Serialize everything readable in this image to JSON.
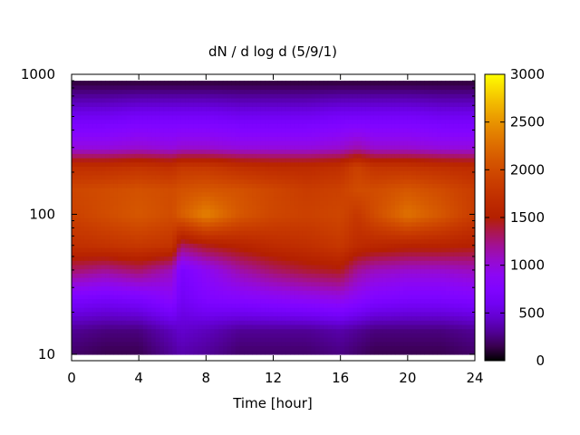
{
  "chart_data": {
    "type": "heatmap",
    "title": "dN / d log d (5/9/1)",
    "xlabel": "Time [hour]",
    "ylabel": "",
    "xlim": [
      0,
      24
    ],
    "ylim": [
      9,
      1000
    ],
    "y_scale": "log",
    "x_ticks": [
      "0",
      "4",
      "8",
      "12",
      "16",
      "20",
      "24"
    ],
    "y_ticks": [
      "10",
      "100",
      "1000"
    ],
    "colorbar": {
      "range": [
        0,
        3000
      ],
      "ticks": [
        "0",
        "500",
        "1000",
        "1500",
        "2000",
        "2500",
        "3000"
      ],
      "colormap": "gnuplot",
      "colors": [
        "#000000",
        "#7a00ff",
        "#cc2060",
        "#ff8800",
        "#ffff00"
      ]
    },
    "grid": false,
    "time_hours": [
      0,
      2,
      4,
      6,
      6.5,
      8,
      10,
      12,
      14,
      16,
      17,
      18,
      20,
      22,
      24
    ],
    "diameter_levels": [
      10,
      15,
      25,
      40,
      60,
      100,
      150,
      220,
      300,
      500,
      900
    ],
    "values": [
      [
        200,
        150,
        150,
        300,
        350,
        300,
        200,
        200,
        200,
        250,
        200,
        150,
        150,
        150,
        200
      ],
      [
        300,
        250,
        250,
        400,
        450,
        400,
        300,
        300,
        300,
        350,
        300,
        250,
        250,
        250,
        300
      ],
      [
        700,
        650,
        700,
        850,
        600,
        750,
        800,
        850,
        900,
        950,
        850,
        750,
        700,
        700,
        750
      ],
      [
        1300,
        1200,
        1300,
        1100,
        700,
        900,
        1150,
        1300,
        1400,
        1450,
        1200,
        1100,
        1050,
        1050,
        1100
      ],
      [
        1700,
        1750,
        1800,
        1750,
        1300,
        1450,
        1550,
        1650,
        1700,
        1800,
        1650,
        1600,
        1550,
        1550,
        1500
      ],
      [
        1900,
        2000,
        2100,
        2000,
        2150,
        2400,
        2100,
        1950,
        1900,
        1950,
        1800,
        2000,
        2300,
        2100,
        1850
      ],
      [
        1950,
        2000,
        2050,
        2000,
        2050,
        2100,
        2050,
        1950,
        1850,
        1900,
        2000,
        2000,
        2100,
        2000,
        1850
      ],
      [
        1700,
        1700,
        1750,
        1700,
        1800,
        1800,
        1700,
        1650,
        1650,
        1700,
        1900,
        1750,
        1750,
        1700,
        1650
      ],
      [
        1000,
        1000,
        1050,
        1000,
        1050,
        1050,
        1000,
        1000,
        1000,
        1050,
        1150,
        1050,
        1050,
        1000,
        1000
      ],
      [
        600,
        600,
        650,
        650,
        650,
        650,
        600,
        600,
        600,
        650,
        650,
        650,
        650,
        600,
        600
      ],
      [
        100,
        100,
        100,
        100,
        100,
        100,
        100,
        100,
        100,
        100,
        100,
        100,
        100,
        100,
        100
      ]
    ]
  }
}
